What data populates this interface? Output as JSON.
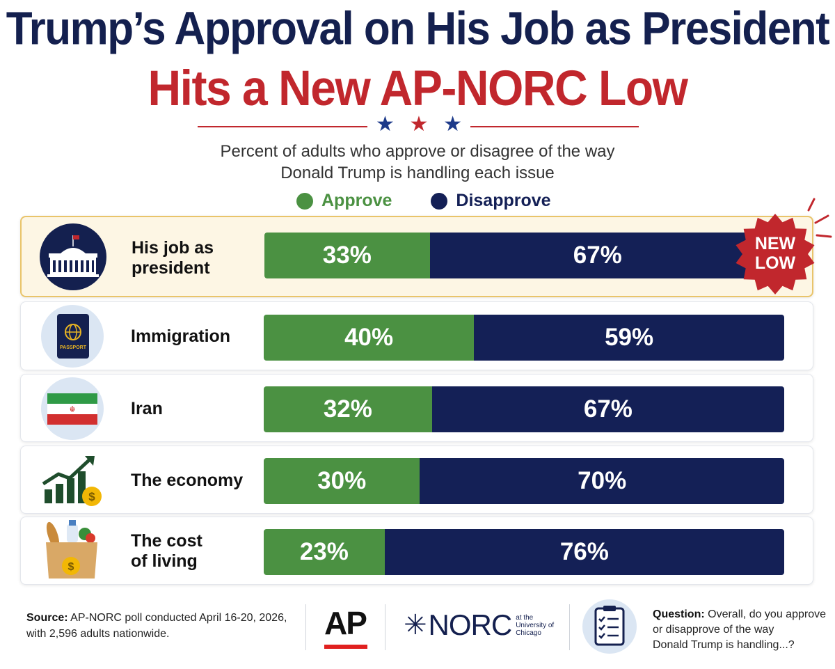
{
  "header": {
    "title_line1": "Trump’s Approval on His Job as President",
    "title_line2": "Hits a New AP-NORC Low",
    "subtitle_line1": "Percent of adults who approve or disagree of the way",
    "subtitle_line2": "Donald Trump is handling each issue"
  },
  "colors": {
    "approve": "#4b9142",
    "disapprove": "#142056",
    "title_navy": "#14204f",
    "title_red": "#c1272d",
    "highlight_bg": "#fdf6e4"
  },
  "legend": {
    "approve_label": "Approve",
    "disapprove_label": "Disapprove"
  },
  "badge": {
    "line1": "NEW",
    "line2": "LOW"
  },
  "chart_data": {
    "type": "bar",
    "orientation": "horizontal-stacked",
    "title": "Trump’s Approval on His Job as President Hits a New AP-NORC Low",
    "subtitle": "Percent of adults who approve or disagree of the way Donald Trump is handling each issue",
    "categories": [
      "His job as president",
      "Immigration",
      "Iran",
      "The economy",
      "The cost of living"
    ],
    "series": [
      {
        "name": "Approve",
        "values": [
          33,
          40,
          32,
          30,
          23
        ],
        "labels": [
          "33%",
          "40%",
          "32%",
          "30%",
          "23%"
        ]
      },
      {
        "name": "Disapprove",
        "values": [
          67,
          59,
          67,
          70,
          76
        ],
        "labels": [
          "67%",
          "59%",
          "67%",
          "70%",
          "76%"
        ]
      }
    ],
    "xlim": [
      0,
      100
    ],
    "legend_position": "top-center",
    "highlighted_category": "His job as president",
    "annotation": "NEW LOW"
  },
  "rows": [
    {
      "label_line1": "His job as",
      "label_line2": "president",
      "icon": "white-house-icon"
    },
    {
      "label_line1": "Immigration",
      "label_line2": "",
      "icon": "passport-icon"
    },
    {
      "label_line1": "Iran",
      "label_line2": "",
      "icon": "iran-flag-icon"
    },
    {
      "label_line1": "The economy",
      "label_line2": "",
      "icon": "growth-chart-icon"
    },
    {
      "label_line1": "The cost",
      "label_line2": "of living",
      "icon": "grocery-bag-icon"
    }
  ],
  "icon_text": {
    "passport": "PASSPORT"
  },
  "footer": {
    "source_label": "Source:",
    "source_text_line1": " AP-NORC poll conducted April 16-20, 2026,",
    "source_text_line2": "with 2,596 adults nationwide.",
    "ap_logo": "AP",
    "norc_logo": "NORC",
    "norc_sub1": "at the",
    "norc_sub2": "University of",
    "norc_sub3": "Chicago",
    "question_label": "Question:",
    "question_line1": " Overall, do you approve",
    "question_line2": "or disapprove of the way",
    "question_line3": "Donald Trump is handling...?"
  }
}
